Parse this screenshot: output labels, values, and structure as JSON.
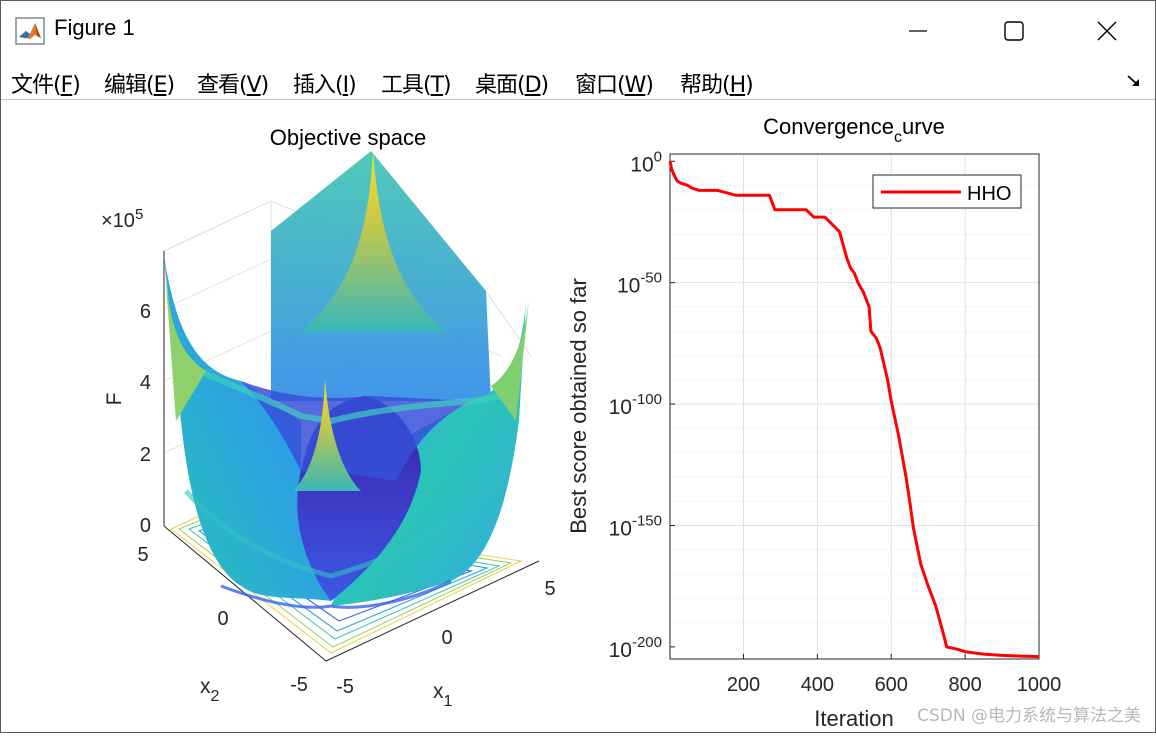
{
  "window": {
    "title": "Figure 1"
  },
  "menu": {
    "items": [
      {
        "label": "文件(",
        "key": "F",
        "suffix": ")"
      },
      {
        "label": "编辑(",
        "key": "E",
        "suffix": ")"
      },
      {
        "label": "查看(",
        "key": "V",
        "suffix": ")"
      },
      {
        "label": "插入(",
        "key": "I",
        "suffix": ")"
      },
      {
        "label": "工具(",
        "key": "T",
        "suffix": ")"
      },
      {
        "label": "桌面(",
        "key": "D",
        "suffix": ")"
      },
      {
        "label": "窗口(",
        "key": "W",
        "suffix": ")"
      },
      {
        "label": "帮助(",
        "key": "H",
        "suffix": ")"
      }
    ]
  },
  "icons": {
    "app": "matlab-icon",
    "minimize": "minimize-icon",
    "maximize": "maximize-icon",
    "close": "close-icon",
    "dock": "dock-arrow-icon"
  },
  "surface_plot": {
    "title": "Objective space",
    "xlabel_main": "x",
    "xlabel_sub": "1",
    "ylabel_main": "x",
    "ylabel_sub": "2",
    "zlabel": "F",
    "exponent_prefix": "×10",
    "exponent_power": "5",
    "z_ticks": [
      "0",
      "2",
      "4",
      "6"
    ],
    "x1_ticks": [
      "-5",
      "0",
      "5"
    ],
    "x2_ticks": [
      "5",
      "0",
      "-5"
    ]
  },
  "chart_data": {
    "type": "line",
    "title_main": "Convergence",
    "title_sub": "c",
    "title_tail": "urve",
    "xlabel": "Iteration",
    "ylabel": "Best score obtained so far",
    "xlim": [
      1,
      1000
    ],
    "ylim_log10": [
      -205,
      3
    ],
    "y_scale": "log",
    "grid": true,
    "legend_placement": "top-right",
    "x_ticks": [
      "200",
      "400",
      "600",
      "800",
      "1000"
    ],
    "y_ticks": [
      {
        "base": "10",
        "exp": "0",
        "log10": 0
      },
      {
        "base": "10",
        "exp": "-50",
        "log10": -50
      },
      {
        "base": "10",
        "exp": "-100",
        "log10": -100
      },
      {
        "base": "10",
        "exp": "-150",
        "log10": -150
      },
      {
        "base": "10",
        "exp": "-200",
        "log10": -200
      }
    ],
    "series": [
      {
        "name": "HHO",
        "color": "#ff0000",
        "x": [
          1,
          5,
          10,
          20,
          30,
          50,
          60,
          80,
          130,
          180,
          270,
          285,
          370,
          390,
          420,
          440,
          460,
          480,
          490,
          500,
          510,
          525,
          540,
          545,
          560,
          570,
          590,
          600,
          620,
          640,
          650,
          660,
          680,
          700,
          720,
          740,
          750,
          780,
          800,
          850,
          900,
          950,
          1000
        ],
        "y_log10": [
          0,
          -3,
          -5,
          -8,
          -9,
          -10,
          -11,
          -12,
          -12,
          -14,
          -14,
          -20,
          -20,
          -23,
          -23,
          -26,
          -29,
          -40,
          -44,
          -46,
          -50,
          -54,
          -60,
          -70,
          -73,
          -77,
          -90,
          -99,
          -113,
          -130,
          -140,
          -151,
          -166,
          -175,
          -183,
          -194,
          -200,
          -201,
          -202,
          -203,
          -203.5,
          -203.8,
          -204
        ]
      }
    ]
  },
  "watermark": "CSDN @电力系统与算法之美"
}
